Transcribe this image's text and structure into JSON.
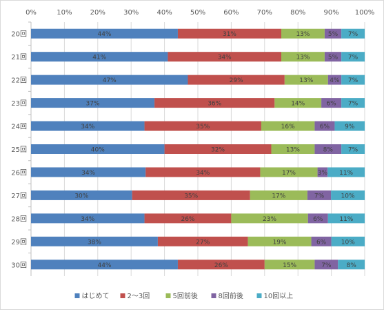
{
  "chart_data": {
    "type": "bar",
    "orientation": "horizontal",
    "stacked": "percent",
    "categories": [
      "20回",
      "21回",
      "22回",
      "23回",
      "24回",
      "25回",
      "26回",
      "27回",
      "28回",
      "29回",
      "30回"
    ],
    "series": [
      {
        "name": "はじめて",
        "color": "#4f81bd",
        "values": [
          44,
          41,
          47,
          37,
          34,
          40,
          34,
          30,
          34,
          38,
          44
        ]
      },
      {
        "name": "2〜3回",
        "color": "#c0504d",
        "values": [
          31,
          34,
          29,
          36,
          35,
          32,
          34,
          35,
          26,
          27,
          26
        ]
      },
      {
        "name": "5回前後",
        "color": "#9bbb59",
        "values": [
          13,
          13,
          13,
          14,
          16,
          13,
          17,
          17,
          23,
          19,
          15
        ]
      },
      {
        "name": "8回前後",
        "color": "#8064a2",
        "values": [
          5,
          5,
          4,
          6,
          6,
          8,
          3,
          7,
          6,
          6,
          7
        ]
      },
      {
        "name": "10回以上",
        "color": "#4bacc6",
        "values": [
          7,
          7,
          7,
          7,
          9,
          7,
          11,
          10,
          11,
          10,
          8
        ]
      }
    ],
    "x_ticks": [
      "0%",
      "10%",
      "20%",
      "30%",
      "40%",
      "50%",
      "60%",
      "70%",
      "80%",
      "90%",
      "100%"
    ],
    "xlim": [
      0,
      100
    ],
    "grid": true,
    "legend_position": "bottom",
    "data_label_suffix": "%"
  }
}
